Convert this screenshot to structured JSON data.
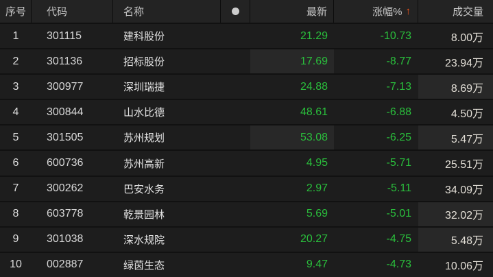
{
  "colors": {
    "row_background": "#1d1d1d",
    "header_background": "#232323",
    "flash_cell_background": "#282828",
    "down_green": "#2abf3c",
    "sort_arrow_orange": "#f4551c",
    "header_text": "#c9c9c9",
    "volume_text": "#e2ded6"
  },
  "header": {
    "columns": [
      {
        "key": "index",
        "label": "序号"
      },
      {
        "key": "code",
        "label": "代码"
      },
      {
        "key": "name",
        "label": "名称"
      },
      {
        "key": "signal",
        "label": "",
        "icon": "dot-icon"
      },
      {
        "key": "price",
        "label": "最新"
      },
      {
        "key": "change",
        "label": "涨幅%",
        "sort_arrow": "↑"
      },
      {
        "key": "volume",
        "label": "成交量"
      }
    ]
  },
  "rows": [
    {
      "index": "1",
      "code": "301115",
      "name": "建科股份",
      "price": "21.29",
      "change": "-10.73",
      "volume": "8.00万",
      "price_flash": false,
      "volume_flash": false
    },
    {
      "index": "2",
      "code": "301136",
      "name": "招标股份",
      "price": "17.69",
      "change": "-8.77",
      "volume": "23.94万",
      "price_flash": true,
      "volume_flash": false
    },
    {
      "index": "3",
      "code": "300977",
      "name": "深圳瑞捷",
      "price": "24.88",
      "change": "-7.13",
      "volume": "8.69万",
      "price_flash": false,
      "volume_flash": true
    },
    {
      "index": "4",
      "code": "300844",
      "name": "山水比德",
      "price": "48.61",
      "change": "-6.88",
      "volume": "4.50万",
      "price_flash": false,
      "volume_flash": false
    },
    {
      "index": "5",
      "code": "301505",
      "name": "苏州规划",
      "price": "53.08",
      "change": "-6.25",
      "volume": "5.47万",
      "price_flash": true,
      "volume_flash": true
    },
    {
      "index": "6",
      "code": "600736",
      "name": "苏州高新",
      "price": "4.95",
      "change": "-5.71",
      "volume": "25.51万",
      "price_flash": false,
      "volume_flash": false
    },
    {
      "index": "7",
      "code": "300262",
      "name": "巴安水务",
      "price": "2.97",
      "change": "-5.11",
      "volume": "34.09万",
      "price_flash": false,
      "volume_flash": false
    },
    {
      "index": "8",
      "code": "603778",
      "name": "乾景园林",
      "price": "5.69",
      "change": "-5.01",
      "volume": "32.02万",
      "price_flash": false,
      "volume_flash": true
    },
    {
      "index": "9",
      "code": "301038",
      "name": "深水规院",
      "price": "20.27",
      "change": "-4.75",
      "volume": "5.48万",
      "price_flash": false,
      "volume_flash": true
    },
    {
      "index": "10",
      "code": "002887",
      "name": "绿茵生态",
      "price": "9.47",
      "change": "-4.73",
      "volume": "10.06万",
      "price_flash": false,
      "volume_flash": false
    }
  ]
}
